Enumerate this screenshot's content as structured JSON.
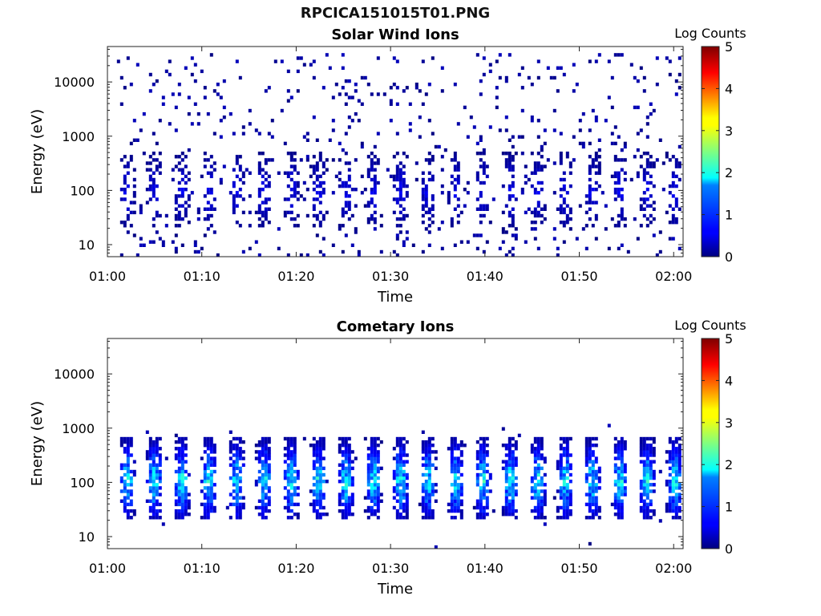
{
  "figure": {
    "title": "RPCICA151015T01.PNG"
  },
  "chart_data": [
    {
      "type": "heatmap",
      "title": "Solar Wind Ions",
      "xlabel": "Time",
      "ylabel": "Energy (eV)",
      "xlim": [
        "01:00",
        "02:01"
      ],
      "ylim": [
        6,
        45000
      ],
      "yscale": "log",
      "xticks": [
        "01:00",
        "01:10",
        "01:20",
        "01:30",
        "01:40",
        "01:50",
        "02:00"
      ],
      "yticks": [
        "10",
        "100",
        "1000",
        "10000"
      ],
      "colorbar": {
        "label": "Log Counts",
        "range": [
          0,
          5
        ],
        "ticks": [
          "0",
          "1",
          "2",
          "3",
          "4",
          "5"
        ],
        "colormap": "jet"
      },
      "pattern": {
        "burst_period_min": 2.9,
        "core_energy_ev": [
          20,
          400
        ],
        "peak_log_counts": 0.6,
        "sparse_up_to_ev": 30000
      }
    },
    {
      "type": "heatmap",
      "title": "Cometary Ions",
      "xlabel": "Time",
      "ylabel": "Energy (eV)",
      "xlim": [
        "01:00",
        "02:01"
      ],
      "ylim": [
        6,
        45000
      ],
      "yscale": "log",
      "xticks": [
        "01:00",
        "01:10",
        "01:20",
        "01:30",
        "01:40",
        "01:50",
        "02:00"
      ],
      "yticks": [
        "10",
        "100",
        "1000",
        "10000"
      ],
      "colorbar": {
        "label": "Log Counts",
        "range": [
          0,
          5
        ],
        "ticks": [
          "0",
          "1",
          "2",
          "3",
          "4",
          "5"
        ],
        "colormap": "jet"
      },
      "pattern": {
        "burst_period_min": 2.9,
        "core_energy_ev": [
          20,
          500
        ],
        "peak_log_counts": 2.1,
        "sparse_up_to_ev": 1600
      }
    }
  ]
}
